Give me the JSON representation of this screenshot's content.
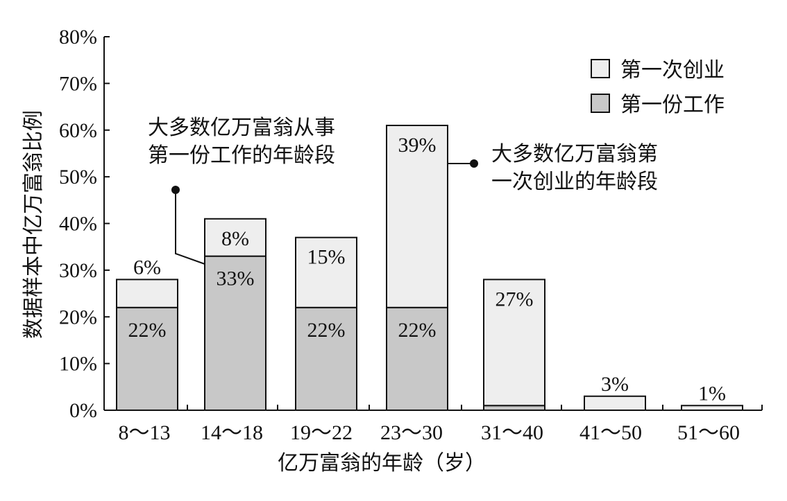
{
  "chart_data": {
    "type": "bar",
    "stacked": true,
    "title": "",
    "xlabel": "亿万富翁的年龄（岁）",
    "ylabel": "数据样本中亿万富翁比例",
    "categories": [
      "8～13",
      "14～18",
      "19～22",
      "23～30",
      "31～40",
      "41～50",
      "51～60"
    ],
    "ylim": [
      0,
      80
    ],
    "yticks": [
      "0%",
      "10%",
      "20%",
      "30%",
      "40%",
      "50%",
      "60%",
      "70%",
      "80%"
    ],
    "grid": false,
    "legend_position": "top-right",
    "series": [
      {
        "name": "第一份工作",
        "color": "#c8c8c8",
        "values": [
          22,
          33,
          22,
          22,
          1,
          0,
          0
        ],
        "labels": [
          "22%",
          "33%",
          "22%",
          "22%",
          "",
          "",
          ""
        ]
      },
      {
        "name": "第一次创业",
        "color": "#eeeeee",
        "values": [
          6,
          8,
          15,
          39,
          27,
          3,
          1
        ],
        "labels": [
          "6%",
          "8%",
          "15%",
          "39%",
          "27%",
          "3%",
          "1%"
        ]
      }
    ],
    "annotations": [
      {
        "lines": [
          "大多数亿万富翁从事",
          "第一份工作的年龄段"
        ],
        "target_category": "14～18"
      },
      {
        "lines": [
          "大多数亿万富翁第",
          "一次创业的年龄段"
        ],
        "target_category": "23～30"
      }
    ]
  }
}
